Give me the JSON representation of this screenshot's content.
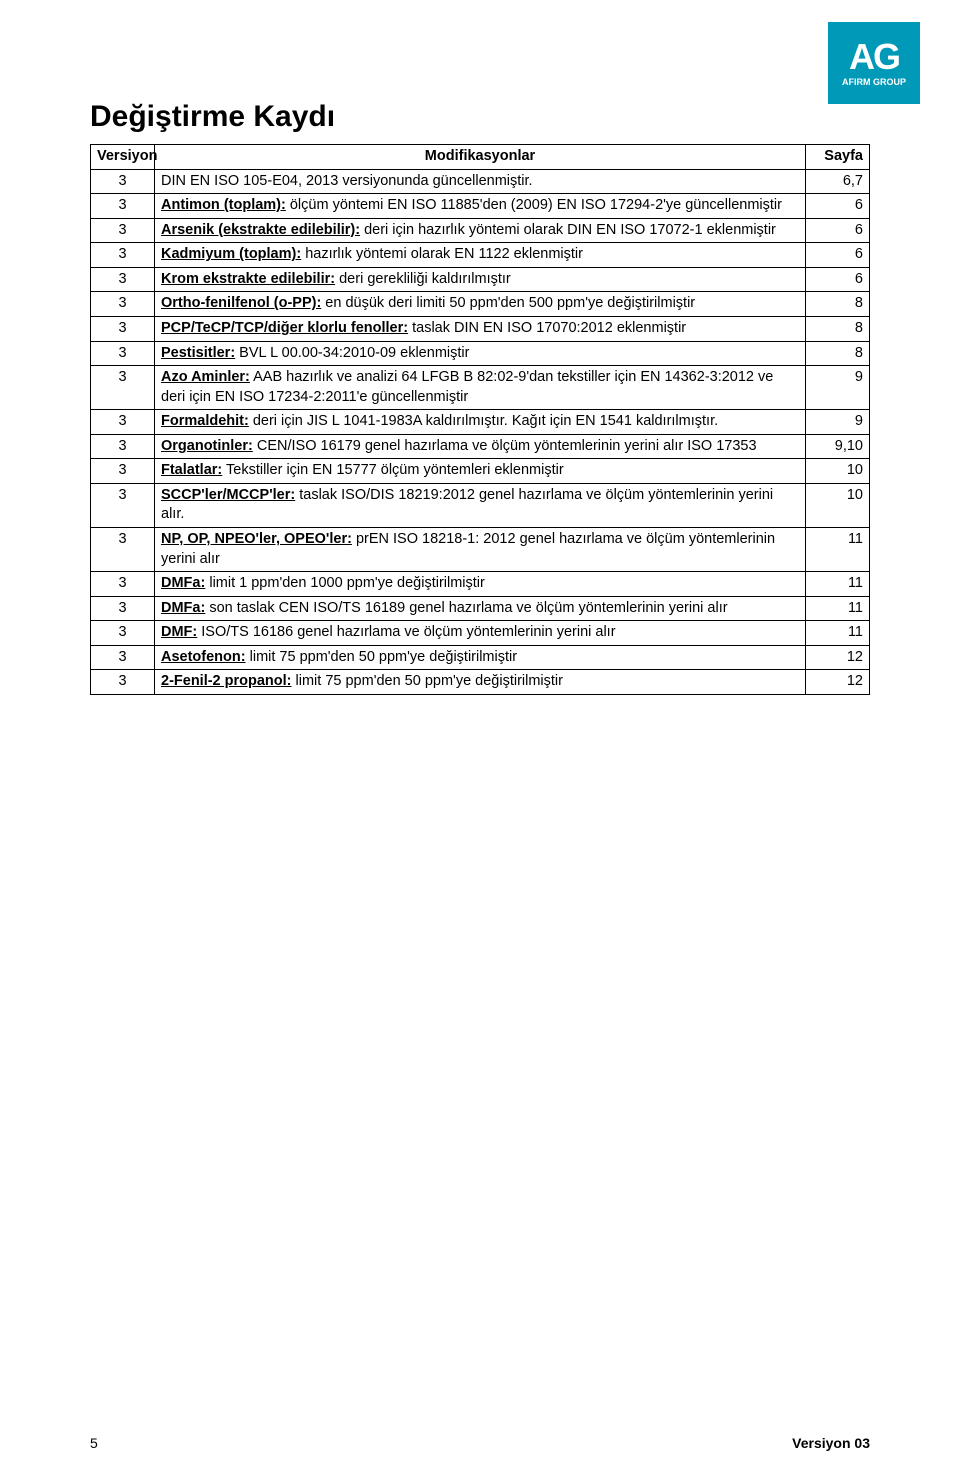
{
  "logo": {
    "main": "AG",
    "sub": "AFIRM GROUP"
  },
  "title": "Değiştirme Kaydı",
  "headers": {
    "version": "Versiyon",
    "mod": "Modifikasyonlar",
    "page": "Sayfa"
  },
  "rows": [
    {
      "v": "3",
      "label": "",
      "desc": "DIN EN ISO 105-E04, 2013 versiyonunda güncellenmiştir.",
      "p": "6,7"
    },
    {
      "v": "3",
      "label": "Antimon (toplam):",
      "desc": " ölçüm yöntemi EN ISO 11885'den (2009) EN ISO 17294-2'ye güncellenmiştir",
      "p": "6"
    },
    {
      "v": "3",
      "label": "Arsenik (ekstrakte edilebilir):",
      "desc": " deri için hazırlık yöntemi olarak DIN EN ISO 17072-1 eklenmiştir",
      "p": "6"
    },
    {
      "v": "3",
      "label": "Kadmiyum (toplam):",
      "desc": " hazırlık yöntemi olarak EN 1122 eklenmiştir",
      "p": "6"
    },
    {
      "v": "3",
      "label": "Krom ekstrakte edilebilir:",
      "desc": " deri gerekliliği kaldırılmıştır",
      "p": "6"
    },
    {
      "v": "3",
      "label": "Ortho-fenilfenol (o-PP):",
      "desc": " en düşük deri limiti 50 ppm'den 500 ppm'ye değiştirilmiştir",
      "p": "8"
    },
    {
      "v": "3",
      "label": "PCP/TeCP/TCP/diğer klorlu fenoller:",
      "desc": " taslak DIN EN ISO 17070:2012 eklenmiştir",
      "p": "8"
    },
    {
      "v": "3",
      "label": "Pestisitler:",
      "desc": " BVL L 00.00-34:2010-09 eklenmiştir",
      "p": "8"
    },
    {
      "v": "3",
      "label": "Azo Aminler:",
      "desc": " AAB hazırlık ve analizi 64 LFGB B 82:02-9'dan tekstiller için EN 14362-3:2012 ve deri için EN ISO 17234-2:2011'e güncellenmiştir",
      "p": "9"
    },
    {
      "v": "3",
      "label": "Formaldehit:",
      "desc": " deri için JIS L 1041-1983A kaldırılmıştır. Kağıt için EN 1541 kaldırılmıştır.",
      "p": "9"
    },
    {
      "v": "3",
      "label": "Organotinler:",
      "desc": " CEN/ISO 16179 genel hazırlama ve ölçüm yöntemlerinin yerini alır ISO 17353",
      "p": "9,10"
    },
    {
      "v": "3",
      "label": "Ftalatlar:",
      "desc": " Tekstiller için EN 15777 ölçüm yöntemleri eklenmiştir",
      "p": "10"
    },
    {
      "v": "3",
      "label": "SCCP'ler/MCCP'ler:",
      "desc": " taslak ISO/DIS 18219:2012 genel hazırlama ve ölçüm yöntemlerinin yerini alır.",
      "p": "10"
    },
    {
      "v": "3",
      "label": "NP, OP, NPEO'ler, OPEO'ler:",
      "desc": " prEN ISO 18218-1: 2012 genel hazırlama ve ölçüm yöntemlerinin yerini alır",
      "p": "11"
    },
    {
      "v": "3",
      "label": "DMFa:",
      "desc": " limit 1 ppm'den 1000 ppm'ye değiştirilmiştir",
      "p": "11"
    },
    {
      "v": "3",
      "label": "DMFa:",
      "desc": " son taslak CEN ISO/TS 16189 genel hazırlama ve ölçüm yöntemlerinin yerini alır",
      "p": "11"
    },
    {
      "v": "3",
      "label": "DMF:",
      "desc": " ISO/TS 16186 genel hazırlama ve ölçüm yöntemlerinin yerini alır",
      "p": "11"
    },
    {
      "v": "3",
      "label": "Asetofenon:",
      "desc": " limit 75 ppm'den 50 ppm'ye değiştirilmiştir",
      "p": "12"
    },
    {
      "v": "3",
      "label": "2-Fenil-2 propanol:",
      "desc": " limit 75 ppm'den 50 ppm'ye değiştirilmiştir",
      "p": "12"
    }
  ],
  "footer": {
    "page": "5",
    "version": "Versiyon 03"
  }
}
